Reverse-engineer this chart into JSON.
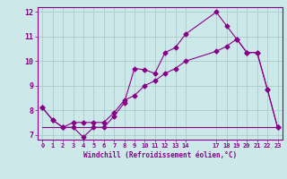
{
  "xlabel": "Windchill (Refroidissement éolien,°C)",
  "background_color": "#cce8e8",
  "grid_color": "#aacccc",
  "line_color": "#880088",
  "xlim": [
    -0.5,
    23.5
  ],
  "ylim": [
    6.8,
    12.2
  ],
  "yticks": [
    7,
    8,
    9,
    10,
    11,
    12
  ],
  "xtick_positions": [
    0,
    1,
    2,
    3,
    4,
    5,
    6,
    7,
    8,
    9,
    10,
    11,
    12,
    13,
    14,
    17,
    18,
    19,
    20,
    21,
    22,
    23
  ],
  "xtick_labels": [
    "0",
    "1",
    "2",
    "3",
    "4",
    "5",
    "6",
    "7",
    "8",
    "9",
    "10",
    "11",
    "12",
    "13",
    "14",
    "17",
    "18",
    "19",
    "20",
    "21",
    "22",
    "23"
  ],
  "series1_x": [
    0,
    1,
    2,
    3,
    4,
    5,
    6,
    7,
    8,
    9,
    10,
    11,
    12,
    13,
    14,
    17,
    18,
    19,
    20,
    21,
    22,
    23
  ],
  "series1_y": [
    8.1,
    7.6,
    7.3,
    7.3,
    6.9,
    7.3,
    7.3,
    7.75,
    8.3,
    9.7,
    9.65,
    9.5,
    10.35,
    10.55,
    11.1,
    12.0,
    11.45,
    10.9,
    10.35,
    10.35,
    8.85,
    7.3
  ],
  "series2_x": [
    0,
    1,
    2,
    3,
    4,
    5,
    6,
    7,
    8,
    9,
    10,
    11,
    12,
    13,
    14,
    17,
    18,
    19,
    20,
    21,
    22,
    23
  ],
  "series2_y": [
    8.1,
    7.6,
    7.3,
    7.5,
    7.5,
    7.5,
    7.5,
    7.9,
    8.4,
    8.6,
    9.0,
    9.2,
    9.5,
    9.7,
    10.0,
    10.4,
    10.6,
    10.9,
    10.35,
    10.35,
    8.85,
    7.3
  ],
  "series3_x": [
    0,
    14,
    22,
    23
  ],
  "series3_y": [
    7.3,
    7.3,
    7.3,
    7.3
  ],
  "marker": "D",
  "markersize": 2.5,
  "linewidth": 0.8
}
